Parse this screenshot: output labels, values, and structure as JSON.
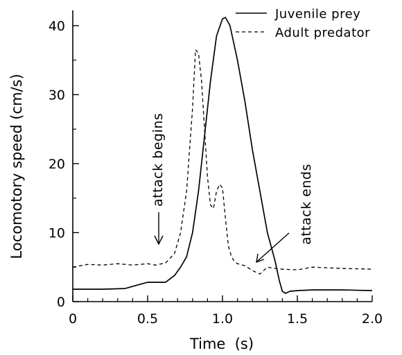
{
  "chart_data": {
    "type": "line",
    "xlabel": "Time  (s)",
    "ylabel": "Locomotory speed (cm/s)",
    "xlim": [
      0,
      2.0
    ],
    "ylim": [
      0,
      40
    ],
    "x_ticks": [
      0,
      0.5,
      1.0,
      1.5,
      2.0
    ],
    "x_tick_labels": [
      "0",
      "0.5",
      "1.0",
      "1.5",
      "2.0"
    ],
    "y_ticks": [
      0,
      10,
      20,
      30,
      40
    ],
    "y_tick_labels": [
      "0",
      "10",
      "20",
      "30",
      "40"
    ],
    "grid": false,
    "legend_position": "top-right",
    "series": [
      {
        "name": "Juvenile prey",
        "style": "solid",
        "x": [
          0,
          0.2,
          0.35,
          0.45,
          0.5,
          0.55,
          0.62,
          0.68,
          0.72,
          0.76,
          0.8,
          0.84,
          0.88,
          0.92,
          0.96,
          1.0,
          1.02,
          1.05,
          1.1,
          1.15,
          1.2,
          1.25,
          1.3,
          1.35,
          1.38,
          1.4,
          1.42,
          1.45,
          1.5,
          1.6,
          1.8,
          2.0
        ],
        "y": [
          1.8,
          1.8,
          1.9,
          2.5,
          2.8,
          2.8,
          2.8,
          3.8,
          5.0,
          6.5,
          10.0,
          16.0,
          24.0,
          32.0,
          38.5,
          41.0,
          41.2,
          40.0,
          35.0,
          29.0,
          22.0,
          16.0,
          10.0,
          6.0,
          3.0,
          1.5,
          1.2,
          1.5,
          1.6,
          1.7,
          1.7,
          1.6
        ]
      },
      {
        "name": "Adult predator",
        "style": "dashed",
        "x": [
          0,
          0.05,
          0.1,
          0.2,
          0.3,
          0.4,
          0.5,
          0.55,
          0.62,
          0.68,
          0.72,
          0.76,
          0.8,
          0.82,
          0.84,
          0.86,
          0.88,
          0.9,
          0.92,
          0.94,
          0.96,
          0.98,
          1.0,
          1.02,
          1.04,
          1.06,
          1.08,
          1.1,
          1.15,
          1.2,
          1.25,
          1.3,
          1.35,
          1.4,
          1.5,
          1.6,
          1.8,
          2.0
        ],
        "y": [
          5.0,
          5.2,
          5.4,
          5.3,
          5.5,
          5.3,
          5.5,
          5.3,
          5.6,
          7.0,
          10.0,
          16.0,
          28.0,
          36.5,
          36.0,
          32.0,
          25.0,
          18.0,
          14.0,
          13.5,
          16.0,
          17.0,
          16.5,
          12.0,
          8.0,
          6.5,
          5.8,
          5.5,
          5.2,
          4.5,
          4.0,
          5.0,
          4.8,
          4.7,
          4.6,
          5.0,
          4.8,
          4.7
        ]
      }
    ],
    "annotations": [
      {
        "text": "attack  begins",
        "arrow_to": [
          0.56,
          8.5
        ]
      },
      {
        "text": "attack  ends",
        "arrow_to": [
          1.21,
          5.6
        ]
      }
    ]
  }
}
